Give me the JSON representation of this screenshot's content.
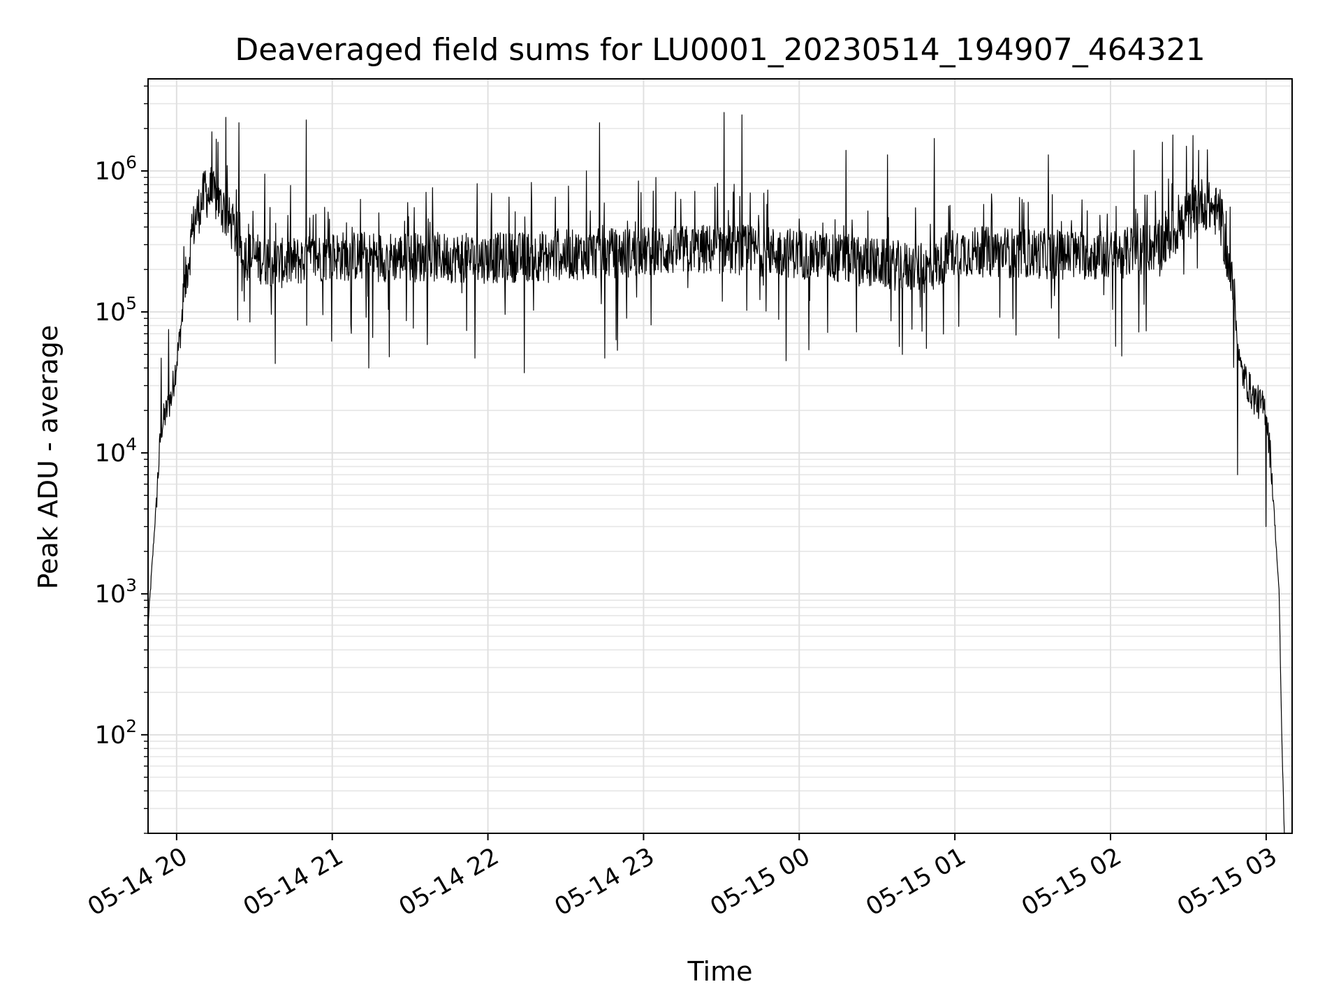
{
  "chart_data": {
    "type": "line",
    "title": "Deaveraged field sums for LU0001_20230514_194907_464321",
    "xlabel": "Time",
    "ylabel": "Peak ADU - average",
    "y_scale": "log",
    "ylim": [
      20,
      4500000
    ],
    "xlim": [
      "2023-05-14 19:49",
      "2023-05-15 03:10"
    ],
    "grid": true,
    "grid_minor": true,
    "x_ticks": [
      {
        "t": "2023-05-14 20:00",
        "label": "05-14 20"
      },
      {
        "t": "2023-05-14 21:00",
        "label": "05-14 21"
      },
      {
        "t": "2023-05-14 22:00",
        "label": "05-14 22"
      },
      {
        "t": "2023-05-14 23:00",
        "label": "05-14 23"
      },
      {
        "t": "2023-05-15 00:00",
        "label": "05-15 00"
      },
      {
        "t": "2023-05-15 01:00",
        "label": "05-15 01"
      },
      {
        "t": "2023-05-15 02:00",
        "label": "05-15 02"
      },
      {
        "t": "2023-05-15 03:00",
        "label": "05-15 03"
      }
    ],
    "y_ticks": [
      {
        "value": 100,
        "base": "10",
        "exp": "2"
      },
      {
        "value": 1000,
        "base": "10",
        "exp": "3"
      },
      {
        "value": 10000,
        "base": "10",
        "exp": "4"
      },
      {
        "value": 100000,
        "base": "10",
        "exp": "5"
      },
      {
        "value": 1000000,
        "base": "10",
        "exp": "6"
      }
    ],
    "series": [
      {
        "color": "#000000",
        "baseline": [
          [
            "2023-05-14 19:49",
            600
          ],
          [
            "2023-05-14 19:52",
            4000
          ],
          [
            "2023-05-14 19:54",
            15000
          ],
          [
            "2023-05-14 19:58",
            25000
          ],
          [
            "2023-05-14 20:01",
            60000
          ],
          [
            "2023-05-14 20:04",
            200000
          ],
          [
            "2023-05-14 20:07",
            450000
          ],
          [
            "2023-05-14 20:11",
            700000
          ],
          [
            "2023-05-14 20:15",
            650000
          ],
          [
            "2023-05-14 20:20",
            450000
          ],
          [
            "2023-05-14 20:27",
            250000
          ],
          [
            "2023-05-14 20:40",
            220000
          ],
          [
            "2023-05-14 21:00",
            250000
          ],
          [
            "2023-05-14 22:00",
            240000
          ],
          [
            "2023-05-14 22:45",
            260000
          ],
          [
            "2023-05-14 23:30",
            280000
          ],
          [
            "2023-05-15 00:00",
            260000
          ],
          [
            "2023-05-15 00:50",
            200000
          ],
          [
            "2023-05-15 01:00",
            270000
          ],
          [
            "2023-05-15 02:00",
            250000
          ],
          [
            "2023-05-15 02:20",
            300000
          ],
          [
            "2023-05-15 02:35",
            600000
          ],
          [
            "2023-05-15 02:42",
            500000
          ],
          [
            "2023-05-15 02:47",
            150000
          ],
          [
            "2023-05-15 02:50",
            40000
          ],
          [
            "2023-05-15 02:55",
            25000
          ],
          [
            "2023-05-15 03:00",
            20000
          ],
          [
            "2023-05-15 03:02",
            8000
          ],
          [
            "2023-05-15 03:04",
            2000
          ],
          [
            "2023-05-15 03:05",
            1000
          ],
          [
            "2023-05-15 03:06",
            100
          ],
          [
            "2023-05-15 03:07",
            20
          ]
        ],
        "spikes": [
          [
            "2023-05-14 19:54",
            47000
          ],
          [
            "2023-05-14 19:57",
            75000
          ],
          [
            "2023-05-14 20:11",
            1000000
          ],
          [
            "2023-05-14 20:16",
            1600000
          ],
          [
            "2023-05-14 20:19",
            2400000
          ],
          [
            "2023-05-14 20:24",
            2200000
          ],
          [
            "2023-05-14 20:34",
            950000
          ],
          [
            "2023-05-14 20:38",
            43000
          ],
          [
            "2023-05-14 20:50",
            2300000
          ],
          [
            "2023-05-14 21:14",
            40000
          ],
          [
            "2023-05-14 21:22",
            48000
          ],
          [
            "2023-05-14 21:55",
            47000
          ],
          [
            "2023-05-14 22:14",
            37000
          ],
          [
            "2023-05-14 22:38",
            1000000
          ],
          [
            "2023-05-14 22:43",
            2200000
          ],
          [
            "2023-05-14 22:45",
            47000
          ],
          [
            "2023-05-14 23:31",
            2600000
          ],
          [
            "2023-05-14 23:38",
            2500000
          ],
          [
            "2023-05-14 23:55",
            45000
          ],
          [
            "2023-05-15 00:18",
            1400000
          ],
          [
            "2023-05-15 00:34",
            1300000
          ],
          [
            "2023-05-15 00:49",
            55000
          ],
          [
            "2023-05-15 00:52",
            1700000
          ],
          [
            "2023-05-15 01:36",
            1300000
          ],
          [
            "2023-05-15 01:40",
            65000
          ],
          [
            "2023-05-15 02:02",
            57000
          ],
          [
            "2023-05-15 02:09",
            1400000
          ],
          [
            "2023-05-15 02:20",
            1600000
          ],
          [
            "2023-05-15 02:24",
            1800000
          ],
          [
            "2023-05-15 02:34",
            1400000
          ],
          [
            "2023-05-15 02:49",
            7000
          ],
          [
            "2023-05-15 03:00",
            3000
          ]
        ]
      }
    ]
  }
}
